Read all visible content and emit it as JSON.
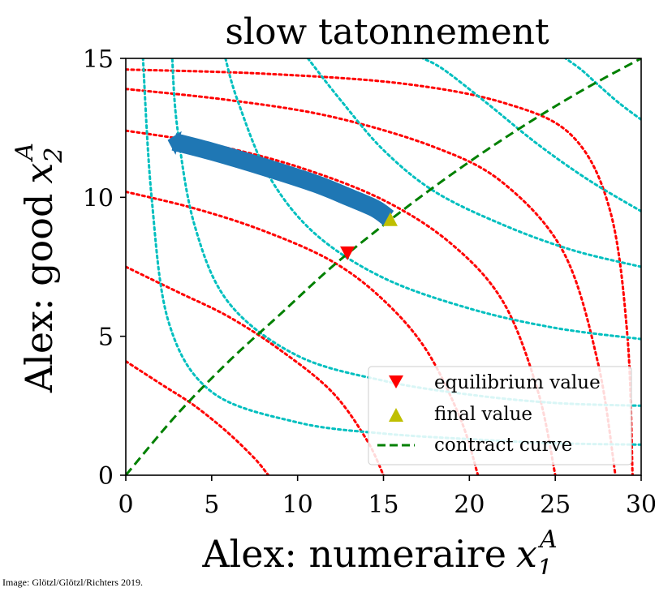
{
  "chart_data": {
    "type": "line",
    "title": "slow tatonnement",
    "xlabel": "Alex: numeraire",
    "xlabel_symbol": "x",
    "xlabel_sub": "1",
    "xlabel_sup": "A",
    "ylabel": "Alex: good",
    "ylabel_symbol": "x",
    "ylabel_sub": "2",
    "ylabel_sup": "A",
    "xlim": [
      0,
      30
    ],
    "ylim": [
      0,
      15
    ],
    "xticks": [
      0,
      5,
      10,
      15,
      20,
      25,
      30
    ],
    "yticks": [
      0,
      5,
      10,
      15
    ],
    "grid": false,
    "legend_position": "bottom-right",
    "series": [
      {
        "name": "equilibrium value",
        "kind": "marker",
        "marker": "triangle-down",
        "color": "#ff0000",
        "points": [
          [
            12.9,
            8.0
          ]
        ]
      },
      {
        "name": "final value",
        "kind": "marker",
        "marker": "triangle-up",
        "color": "#bfbf00",
        "points": [
          [
            15.4,
            9.2
          ]
        ]
      },
      {
        "name": "contract curve",
        "kind": "line",
        "style": "dashed",
        "color": "#008000",
        "x": [
          0,
          3,
          6,
          9,
          12,
          15,
          18,
          21,
          24,
          27,
          30
        ],
        "y": [
          0,
          2.2,
          4.1,
          5.8,
          7.5,
          9.0,
          10.4,
          11.7,
          12.9,
          14.0,
          15.0
        ]
      },
      {
        "kind": "path",
        "color": "#1f77b4",
        "x": [
          2.8,
          5,
          8,
          11,
          13,
          14.5,
          15.3
        ],
        "y": [
          12.0,
          11.65,
          11.1,
          10.5,
          10.0,
          9.6,
          9.25
        ]
      }
    ],
    "indifference_curves_alex": {
      "color": "#ff0000",
      "style": "dotted",
      "curves": [
        {
          "x": [
            0,
            2,
            4,
            6,
            7.5,
            8.3
          ],
          "y": [
            4.1,
            3.3,
            2.5,
            1.5,
            0.6,
            0
          ]
        },
        {
          "x": [
            0,
            3,
            6,
            9,
            12,
            14,
            15
          ],
          "y": [
            7.5,
            6.6,
            5.7,
            4.5,
            3.0,
            1.3,
            0
          ]
        },
        {
          "x": [
            0,
            4,
            8,
            12,
            15,
            17.5,
            19.5,
            20.5
          ],
          "y": [
            10.2,
            9.6,
            8.8,
            7.7,
            6.3,
            4.5,
            2.0,
            0
          ]
        },
        {
          "x": [
            0,
            5,
            10,
            15,
            19,
            22,
            24,
            25
          ],
          "y": [
            12.4,
            11.9,
            11.1,
            9.9,
            8.3,
            6.2,
            3.0,
            0
          ]
        },
        {
          "x": [
            0,
            6,
            12,
            18,
            22,
            25.5,
            27.5,
            28.5
          ],
          "y": [
            13.9,
            13.5,
            12.9,
            11.8,
            10.5,
            8.0,
            4.0,
            0
          ]
        },
        {
          "x": [
            0,
            8,
            16,
            22,
            26,
            28.2,
            29.2,
            29.5
          ],
          "y": [
            14.6,
            14.45,
            14.1,
            13.4,
            12.2,
            9.5,
            5.0,
            0
          ]
        }
      ]
    },
    "indifference_curves_beth": {
      "color": "#00bfbf",
      "style": "dotted",
      "curves": [
        {
          "x": [
            30,
            28.7,
            27.4,
            26.5,
            25.6
          ],
          "y": [
            12.8,
            13.4,
            14.1,
            14.6,
            15.0
          ]
        },
        {
          "x": [
            30,
            27,
            24,
            21,
            18.5,
            17.3
          ],
          "y": [
            9.5,
            10.6,
            11.9,
            13.4,
            14.6,
            15.0
          ]
        },
        {
          "x": [
            30,
            26,
            22,
            18,
            15,
            12.5,
            10.6
          ],
          "y": [
            7.5,
            8.1,
            9.0,
            10.2,
            11.7,
            13.5,
            15.0
          ]
        },
        {
          "x": [
            30,
            25,
            20,
            15,
            11,
            8.3,
            6.5,
            5.8
          ],
          "y": [
            4.9,
            5.3,
            6.0,
            7.1,
            8.7,
            10.8,
            13.5,
            15.0
          ]
        },
        {
          "x": [
            30,
            25,
            20,
            15,
            10,
            6,
            4,
            3.0,
            2.7
          ],
          "y": [
            2.5,
            2.6,
            2.9,
            3.4,
            4.3,
            6.2,
            9.0,
            12.5,
            15.0
          ]
        },
        {
          "x": [
            30,
            25,
            20,
            15,
            10,
            5,
            2.5,
            1.5,
            1.0
          ],
          "y": [
            1.1,
            1.15,
            1.3,
            1.5,
            1.9,
            3.0,
            5.5,
            10.0,
            15.0
          ]
        }
      ]
    }
  },
  "credit": "Image: Glötzl/Glötzl/Richters 2019."
}
